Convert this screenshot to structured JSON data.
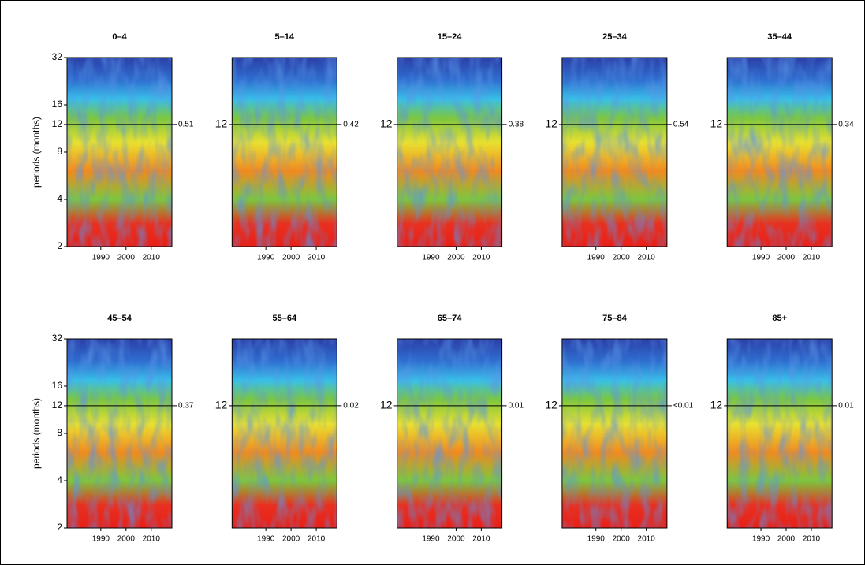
{
  "chart_data": [
    {
      "type": "heatmap",
      "title": "0–4",
      "ylabel": "periods (months)",
      "annotation": "0.51",
      "yscale": "log",
      "xlim": [
        1976.6,
        2018.2
      ],
      "xticks": [
        1990,
        2000,
        2010
      ],
      "ylim": [
        2,
        32
      ],
      "yticks": [
        2,
        4,
        8,
        12,
        16,
        32
      ]
    },
    {
      "type": "heatmap",
      "title": "5–14",
      "annotation": "0.42",
      "yscale": "log",
      "xlim": [
        1976.6,
        2018.2
      ],
      "xticks": [
        1990,
        2000,
        2010
      ],
      "ylim": [
        2,
        32
      ],
      "yticks": [
        12
      ]
    },
    {
      "type": "heatmap",
      "title": "15–24",
      "annotation": "0.38",
      "yscale": "log",
      "xlim": [
        1976.6,
        2018.2
      ],
      "xticks": [
        1990,
        2000,
        2010
      ],
      "ylim": [
        2,
        32
      ],
      "yticks": [
        12
      ]
    },
    {
      "type": "heatmap",
      "title": "25–34",
      "annotation": "0.54",
      "yscale": "log",
      "xlim": [
        1976.6,
        2018.2
      ],
      "xticks": [
        1990,
        2000,
        2010
      ],
      "ylim": [
        2,
        32
      ],
      "yticks": [
        12
      ]
    },
    {
      "type": "heatmap",
      "title": "35–44",
      "annotation": "0.34",
      "yscale": "log",
      "xlim": [
        1976.6,
        2018.2
      ],
      "xticks": [
        1990,
        2000,
        2010
      ],
      "ylim": [
        2,
        32
      ],
      "yticks": [
        12
      ]
    },
    {
      "type": "heatmap",
      "title": "45–54",
      "ylabel": "periods (months)",
      "annotation": "0.37",
      "yscale": "log",
      "xlim": [
        1976.6,
        2018.2
      ],
      "xticks": [
        1990,
        2000,
        2010
      ],
      "ylim": [
        2,
        32
      ],
      "yticks": [
        2,
        4,
        8,
        12,
        16,
        32
      ]
    },
    {
      "type": "heatmap",
      "title": "55–64",
      "annotation": "0.02",
      "yscale": "log",
      "xlim": [
        1976.6,
        2018.2
      ],
      "xticks": [
        1990,
        2000,
        2010
      ],
      "ylim": [
        2,
        32
      ],
      "yticks": [
        12
      ]
    },
    {
      "type": "heatmap",
      "title": "65–74",
      "annotation": "0.01",
      "yscale": "log",
      "xlim": [
        1976.6,
        2018.2
      ],
      "xticks": [
        1990,
        2000,
        2010
      ],
      "ylim": [
        2,
        32
      ],
      "yticks": [
        12
      ]
    },
    {
      "type": "heatmap",
      "title": "75–84",
      "annotation": "<0.01",
      "yscale": "log",
      "xlim": [
        1976.6,
        2018.2
      ],
      "xticks": [
        1990,
        2000,
        2010
      ],
      "ylim": [
        2,
        32
      ],
      "yticks": [
        12
      ]
    },
    {
      "type": "heatmap",
      "title": "85+",
      "annotation": "0.01",
      "yscale": "log",
      "xlim": [
        1976.6,
        2018.2
      ],
      "xticks": [
        1990,
        2000,
        2010
      ],
      "ylim": [
        2,
        32
      ],
      "yticks": [
        12
      ]
    }
  ]
}
